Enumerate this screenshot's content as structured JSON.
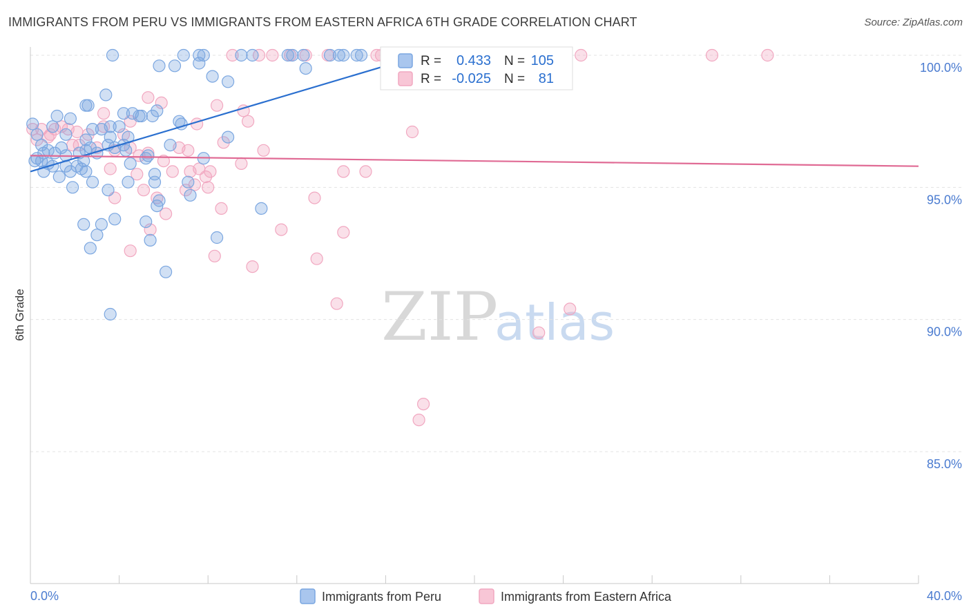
{
  "title": "IMMIGRANTS FROM PERU VS IMMIGRANTS FROM EASTERN AFRICA 6TH GRADE CORRELATION CHART",
  "source": "Source: ZipAtlas.com",
  "watermark": {
    "zip": "ZIP",
    "atlas": "atlas"
  },
  "legend_top": {
    "rows": [
      {
        "r_label": "R =",
        "r_value": "0.433",
        "n_label": "N =",
        "n_value": "105"
      },
      {
        "r_label": "R =",
        "r_value": "-0.025",
        "n_label": "N =",
        "n_value": "81"
      }
    ]
  },
  "chart_data": {
    "type": "scatter",
    "title": "IMMIGRANTS FROM PERU VS IMMIGRANTS FROM EASTERN AFRICA 6TH GRADE CORRELATION CHART",
    "xlabel": "",
    "ylabel": "6th Grade",
    "xlim": [
      0,
      40
    ],
    "ylim": [
      80.5,
      100.3
    ],
    "x_tick_labels": [
      "0.0%",
      "40.0%"
    ],
    "y_ticks": [
      85,
      90,
      95,
      100
    ],
    "y_tick_labels": [
      "85.0%",
      "90.0%",
      "95.0%",
      "100.0%"
    ],
    "grid": true,
    "colors": {
      "peru": "#7aa6e0",
      "peru_line": "#2a6fcf",
      "eafrica": "#f1a7c0",
      "eafrica_line": "#e06a94"
    },
    "series": [
      {
        "name": "Immigrants from Peru",
        "trend": {
          "x": [
            0,
            18
          ],
          "y": [
            95.6,
            100.1
          ]
        },
        "points": [
          [
            3.7,
            100
          ],
          [
            6.9,
            100
          ],
          [
            7.6,
            100
          ],
          [
            7.8,
            100
          ],
          [
            9.5,
            100
          ],
          [
            10,
            100
          ],
          [
            11.6,
            100
          ],
          [
            11.8,
            100
          ],
          [
            12.3,
            100
          ],
          [
            13.5,
            100
          ],
          [
            13.9,
            100
          ],
          [
            14.1,
            100
          ],
          [
            14.7,
            100
          ],
          [
            14.9,
            100
          ],
          [
            16.8,
            100
          ],
          [
            17.6,
            100
          ],
          [
            5.8,
            99.6
          ],
          [
            6.5,
            99.6
          ],
          [
            7.6,
            99.7
          ],
          [
            8.2,
            99.2
          ],
          [
            8.9,
            99
          ],
          [
            12.4,
            99.5
          ],
          [
            3.4,
            98.5
          ],
          [
            2.5,
            98.1
          ],
          [
            2.6,
            98.1
          ],
          [
            4.2,
            97.8
          ],
          [
            4.6,
            97.8
          ],
          [
            4.9,
            97.7
          ],
          [
            5,
            97.7
          ],
          [
            5.5,
            97.7
          ],
          [
            5.7,
            97.9
          ],
          [
            6.8,
            97.4
          ],
          [
            6.7,
            97.5
          ],
          [
            1.8,
            97.6
          ],
          [
            0.1,
            97.4
          ],
          [
            1,
            97.3
          ],
          [
            2.8,
            97.2
          ],
          [
            3.2,
            97.2
          ],
          [
            3.6,
            97.3
          ],
          [
            4,
            97.3
          ],
          [
            0.3,
            97
          ],
          [
            1.6,
            97
          ],
          [
            2.5,
            96.8
          ],
          [
            3.6,
            96.9
          ],
          [
            4.4,
            96.9
          ],
          [
            8.9,
            96.9
          ],
          [
            0.5,
            96.6
          ],
          [
            1.4,
            96.5
          ],
          [
            2.7,
            96.5
          ],
          [
            3.5,
            96.6
          ],
          [
            4.2,
            96.6
          ],
          [
            6.3,
            96.6
          ],
          [
            0.3,
            96.1
          ],
          [
            0.6,
            96.3
          ],
          [
            0.8,
            96.4
          ],
          [
            1.1,
            96.3
          ],
          [
            1.6,
            96.2
          ],
          [
            2.2,
            96.3
          ],
          [
            2.4,
            96
          ],
          [
            2.5,
            96.4
          ],
          [
            3,
            96.3
          ],
          [
            3.8,
            96.5
          ],
          [
            4.3,
            96.4
          ],
          [
            5.3,
            96.2
          ],
          [
            0.2,
            96
          ],
          [
            0.5,
            96
          ],
          [
            0.8,
            95.9
          ],
          [
            1,
            95.8
          ],
          [
            1.6,
            95.8
          ],
          [
            1.8,
            95.6
          ],
          [
            2.1,
            95.8
          ],
          [
            2.3,
            95.7
          ],
          [
            2.5,
            95.6
          ],
          [
            4.5,
            95.9
          ],
          [
            5.2,
            96.1
          ],
          [
            7.8,
            96.1
          ],
          [
            0.6,
            95.6
          ],
          [
            1.3,
            95.4
          ],
          [
            1.9,
            95
          ],
          [
            2.8,
            95.2
          ],
          [
            3.5,
            94.9
          ],
          [
            4.4,
            95.2
          ],
          [
            5.6,
            95.2
          ],
          [
            5.6,
            95.5
          ],
          [
            7.1,
            95.2
          ],
          [
            7.2,
            94.7
          ],
          [
            10.4,
            94.2
          ],
          [
            5.7,
            94.3
          ],
          [
            5.8,
            94.5
          ],
          [
            2.4,
            93.6
          ],
          [
            3.2,
            93.6
          ],
          [
            3.8,
            93.8
          ],
          [
            5.2,
            93.7
          ],
          [
            3,
            93.2
          ],
          [
            8.4,
            93.1
          ],
          [
            5.4,
            93
          ],
          [
            2.7,
            92.7
          ],
          [
            6.1,
            91.8
          ],
          [
            3.6,
            90.2
          ],
          [
            1.2,
            97.7
          ]
        ]
      },
      {
        "name": "Immigrants from Eastern Africa",
        "trend": {
          "x": [
            0,
            40
          ],
          "y": [
            96.2,
            95.8
          ]
        },
        "points": [
          [
            9.1,
            100
          ],
          [
            10.3,
            100
          ],
          [
            10.9,
            100
          ],
          [
            11.7,
            100
          ],
          [
            12.4,
            100
          ],
          [
            13.4,
            100
          ],
          [
            15.6,
            100
          ],
          [
            15.8,
            100
          ],
          [
            22.8,
            100
          ],
          [
            24.8,
            100
          ],
          [
            30.7,
            100
          ],
          [
            33.2,
            100
          ],
          [
            5.3,
            98.4
          ],
          [
            5.9,
            98.2
          ],
          [
            8.4,
            98.1
          ],
          [
            9.6,
            97.9
          ],
          [
            3.3,
            97.8
          ],
          [
            4.5,
            97.5
          ],
          [
            7.5,
            97.4
          ],
          [
            9.8,
            97.5
          ],
          [
            17.2,
            97.1
          ],
          [
            0.1,
            97.2
          ],
          [
            0.5,
            97.2
          ],
          [
            0.9,
            97
          ],
          [
            1.1,
            97.2
          ],
          [
            1.4,
            97.3
          ],
          [
            1.7,
            97.2
          ],
          [
            2.1,
            97.1
          ],
          [
            2.6,
            97
          ],
          [
            3.3,
            97.3
          ],
          [
            4.2,
            97
          ],
          [
            0.3,
            96.8
          ],
          [
            0.8,
            96.9
          ],
          [
            1.9,
            96.6
          ],
          [
            3,
            96.5
          ],
          [
            3.8,
            96.4
          ],
          [
            4.5,
            96.5
          ],
          [
            4.9,
            96.2
          ],
          [
            5.3,
            96.3
          ],
          [
            6,
            96
          ],
          [
            6.7,
            96.5
          ],
          [
            7.1,
            96.4
          ],
          [
            8.7,
            96.7
          ],
          [
            9.5,
            95.9
          ],
          [
            10.5,
            96.4
          ],
          [
            3.6,
            95.7
          ],
          [
            4.8,
            95.5
          ],
          [
            6.4,
            95.6
          ],
          [
            7.2,
            95.6
          ],
          [
            7.6,
            95.7
          ],
          [
            7.9,
            95.4
          ],
          [
            7.4,
            95.1
          ],
          [
            8.1,
            95.6
          ],
          [
            14.1,
            95.6
          ],
          [
            15.1,
            95.6
          ],
          [
            5.1,
            94.9
          ],
          [
            5.7,
            94.6
          ],
          [
            7,
            94.9
          ],
          [
            8,
            95
          ],
          [
            3.8,
            94.6
          ],
          [
            6.1,
            94
          ],
          [
            8.6,
            94.2
          ],
          [
            12.8,
            94.6
          ],
          [
            11.3,
            93.4
          ],
          [
            14.1,
            93.3
          ],
          [
            5.4,
            93.4
          ],
          [
            4.5,
            92.6
          ],
          [
            8.3,
            92.4
          ],
          [
            10,
            92
          ],
          [
            12.9,
            92.3
          ],
          [
            13.8,
            90.6
          ],
          [
            24.3,
            90.4
          ],
          [
            22.9,
            89.5
          ],
          [
            17.7,
            86.8
          ],
          [
            17.5,
            86.2
          ],
          [
            2.2,
            96.6
          ]
        ]
      }
    ]
  },
  "legend_bottom": [
    {
      "label": "Immigrants from Peru"
    },
    {
      "label": "Immigrants from Eastern Africa"
    }
  ]
}
